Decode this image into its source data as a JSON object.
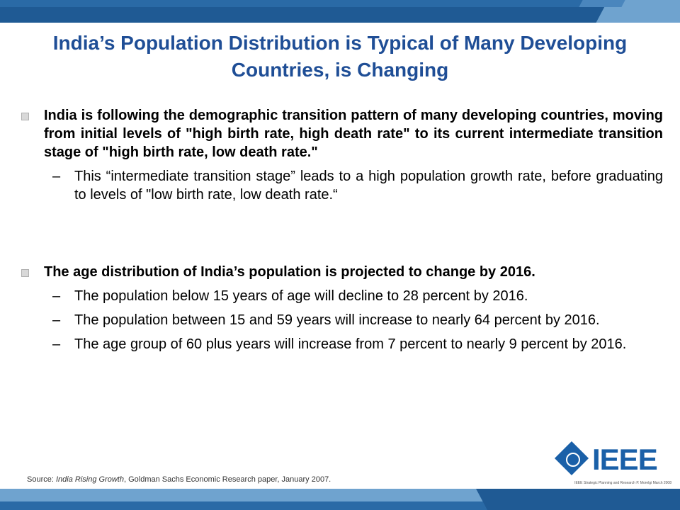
{
  "slide": {
    "title": "India’s Population Distribution is Typical of Many Developing Countries, is Changing",
    "bullets": [
      {
        "text": "India is following the demographic transition pattern of many developing countries, moving from initial levels of \"high birth rate, high death rate\" to its current intermediate transition stage of \"high birth rate, low death rate.\"",
        "subs": [
          "This  “intermediate transition stage” leads to a high population growth rate, before graduating to levels of \"low birth rate, low death rate.“"
        ]
      },
      {
        "text": "The age distribution of India’s population is projected to change by 2016.",
        "subs": [
          "The population below 15 years of age will decline to 28 percent by 2016.",
          "The population between 15 and 59 years will increase to nearly 64 percent by 2016.",
          "The age group of 60 plus years will increase from 7 percent to nearly 9 percent by 2016."
        ]
      }
    ],
    "dash": "–",
    "source_prefix": "Source: ",
    "source_title": "India Rising Growth",
    "source_suffix": ", Goldman Sachs Economic Research paper, January 2007.",
    "logo_text": "IEEE",
    "footer_note": "IEEE Strategic Planning and Research P. Morelgi  March 2008"
  },
  "colors": {
    "title": "#1f4e96",
    "band_dark": "#1f5a94",
    "band_mid": "#2a6aa6",
    "band_light": "#6fa3cf",
    "logo": "#1a60a8"
  },
  "icons": {
    "logo": "ieee-diamond-logo",
    "bullet": "square-bullet"
  }
}
